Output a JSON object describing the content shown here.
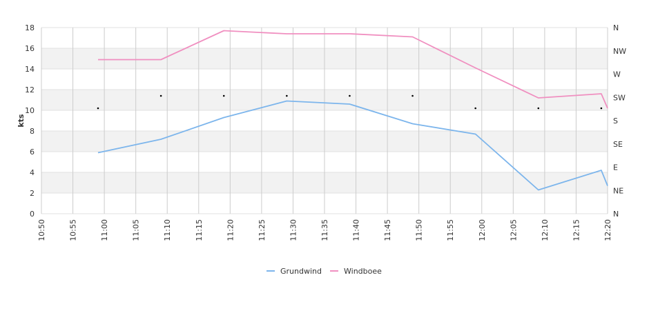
{
  "chart_data": {
    "type": "line",
    "ylabel": "kts",
    "ylim": [
      0,
      18
    ],
    "y_ticks": [
      0,
      2,
      4,
      6,
      8,
      10,
      12,
      14,
      16,
      18
    ],
    "x_ticks": [
      "10:50",
      "10:55",
      "11:00",
      "11:05",
      "11:10",
      "11:15",
      "11:20",
      "11:25",
      "11:30",
      "11:35",
      "11:40",
      "11:45",
      "11:50",
      "11:55",
      "12:00",
      "12:05",
      "12:10",
      "12:15",
      "12:20"
    ],
    "xlim": [
      "10:50",
      "12:20"
    ],
    "right_axis_ticks": [
      "N",
      "NE",
      "E",
      "SE",
      "S",
      "SW",
      "W",
      "NW",
      "N"
    ],
    "grid": true,
    "legend_position": "bottom-center",
    "series": [
      {
        "name": "Grundwind",
        "color": "#7cb5ec",
        "x": [
          "10:59",
          "11:09",
          "11:19",
          "11:29",
          "11:39",
          "11:49",
          "11:59",
          "12:09",
          "12:19",
          "12:20"
        ],
        "values": [
          5.9,
          7.2,
          9.3,
          10.9,
          10.6,
          8.7,
          7.7,
          2.3,
          4.2,
          2.7
        ]
      },
      {
        "name": "Windboee",
        "color": "#f08fc0",
        "x": [
          "10:59",
          "11:09",
          "11:19",
          "11:29",
          "11:39",
          "11:49",
          "11:59",
          "12:09",
          "12:19",
          "12:20"
        ],
        "values": [
          14.9,
          14.9,
          17.7,
          17.4,
          17.4,
          17.1,
          14.1,
          11.2,
          11.6,
          10.2
        ]
      }
    ],
    "direction_markers": {
      "x": [
        "10:59",
        "11:09",
        "11:19",
        "11:29",
        "11:39",
        "11:49",
        "11:59",
        "12:09",
        "12:19"
      ],
      "values": [
        10.2,
        11.4,
        11.4,
        11.4,
        11.4,
        11.4,
        10.2,
        10.2,
        10.2
      ]
    }
  }
}
